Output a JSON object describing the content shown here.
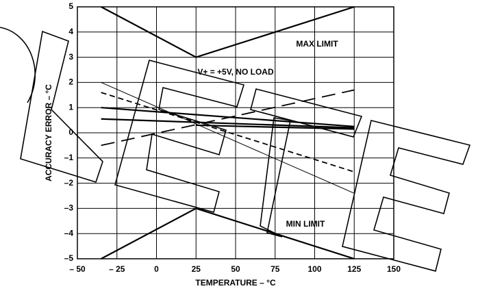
{
  "chart_data": {
    "type": "line",
    "x_label": "TEMPERATURE – °C",
    "y_label": "ACCURACY ERROR – °C",
    "annotations": [
      "MAX LIMIT",
      "V+ = +5V, NO LOAD",
      "MIN LIMIT"
    ],
    "xlim": [
      -50,
      150
    ],
    "ylim": [
      -5,
      5
    ],
    "xticks": [
      {
        "value": -50,
        "label": "– 50"
      },
      {
        "value": -25,
        "label": "– 25"
      },
      0,
      25,
      50,
      75,
      100,
      125,
      150
    ],
    "yticks": [
      {
        "value": -5,
        "label": "–5"
      },
      {
        "value": -4,
        "label": "–4"
      },
      {
        "value": -3,
        "label": "–3"
      },
      {
        "value": -2,
        "label": "–2"
      },
      {
        "value": -1,
        "label": "–1"
      },
      0,
      1,
      2,
      3,
      4,
      5
    ],
    "grid": true,
    "series": [
      {
        "color": "#000000",
        "width": 2.2,
        "dash": "solid",
        "x": [
          -35,
          25,
          125
        ],
        "values": [
          5,
          3,
          5
        ]
      },
      {
        "color": "#000000",
        "width": 2.2,
        "dash": "solid",
        "x": [
          -35,
          25,
          125
        ],
        "values": [
          -5,
          -3,
          -5
        ]
      },
      {
        "color": "#000000",
        "width": 1,
        "dash": "solid",
        "x": [
          -35,
          125
        ],
        "values": [
          2,
          -2.4
        ]
      },
      {
        "color": "#000000",
        "width": 1.8,
        "dash": "dashed",
        "x": [
          -35,
          125
        ],
        "values": [
          1.6,
          -1.55
        ]
      },
      {
        "color": "#000000",
        "width": 1.8,
        "dash": "long-dash",
        "x": [
          -35,
          125
        ],
        "values": [
          -0.5,
          1.7
        ]
      },
      {
        "color": "#000000",
        "width": 2.2,
        "dash": "solid",
        "x": [
          -35,
          125
        ],
        "values": [
          1.0,
          0.25
        ]
      },
      {
        "color": "#000000",
        "width": 2.2,
        "dash": "solid",
        "x": [
          -35,
          125
        ],
        "values": [
          0.55,
          0.2
        ]
      },
      {
        "color": "#000000",
        "width": 2.2,
        "dash": "solid",
        "x": [
          25,
          125
        ],
        "values": [
          0.3,
          0.15
        ]
      }
    ]
  }
}
